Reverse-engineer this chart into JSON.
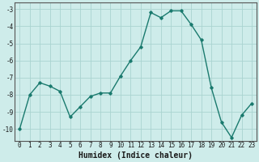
{
  "x": [
    0,
    1,
    2,
    3,
    4,
    5,
    6,
    7,
    8,
    9,
    10,
    11,
    12,
    13,
    14,
    15,
    16,
    17,
    18,
    19,
    20,
    21,
    22,
    23
  ],
  "y": [
    -10.0,
    -8.0,
    -7.3,
    -7.5,
    -7.8,
    -9.3,
    -8.7,
    -8.1,
    -7.9,
    -7.9,
    -6.9,
    -6.0,
    -5.2,
    -3.2,
    -3.5,
    -3.1,
    -3.1,
    -3.9,
    -4.8,
    -7.6,
    -9.6,
    -10.5,
    -9.2,
    -8.5
  ],
  "xlabel": "Humidex (Indice chaleur)",
  "line_color": "#1a7a6e",
  "marker": "D",
  "marker_size": 1.8,
  "line_width": 1.0,
  "bg_color": "#ceecea",
  "grid_color": "#aad4d0",
  "xlim": [
    -0.5,
    23.5
  ],
  "ylim": [
    -10.7,
    -2.6
  ],
  "yticks": [
    -10,
    -9,
    -8,
    -7,
    -6,
    -5,
    -4,
    -3
  ],
  "xticks": [
    0,
    1,
    2,
    3,
    4,
    5,
    6,
    7,
    8,
    9,
    10,
    11,
    12,
    13,
    14,
    15,
    16,
    17,
    18,
    19,
    20,
    21,
    22,
    23
  ],
  "tick_fontsize": 5.5,
  "xlabel_fontsize": 7.0
}
